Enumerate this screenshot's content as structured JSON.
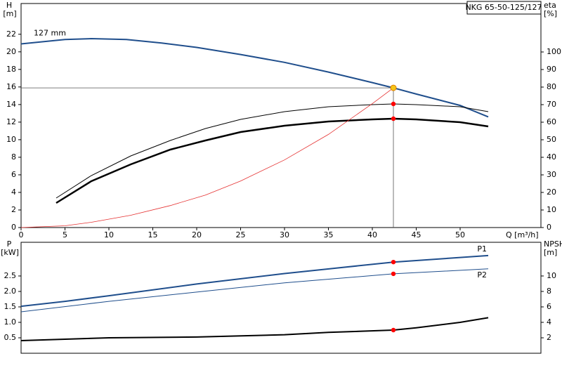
{
  "chart_data": [
    {
      "type": "line",
      "title": "NKG 65-50-125/127",
      "ylabel": "H",
      "ylabel_unit": "[m]",
      "y2label": "eta",
      "y2label_unit": "[%]",
      "xlabel": "Q [m³/h]",
      "xlim": [
        0,
        59.2
      ],
      "xticks": [
        0,
        5,
        10,
        15,
        20,
        25,
        30,
        35,
        40,
        45,
        50
      ],
      "ylim": [
        0,
        25.5
      ],
      "yticks": [
        0,
        2,
        4,
        6,
        8,
        10,
        12,
        14,
        16,
        18,
        20,
        22
      ],
      "y2lim": [
        0,
        127.6
      ],
      "y2ticks": [
        0,
        10,
        20,
        30,
        40,
        50,
        60,
        70,
        80,
        90,
        100
      ],
      "series": [
        {
          "name": "127 mm",
          "color": "#1f4e8c",
          "width": 2,
          "axis": "y",
          "x": [
            0,
            5,
            8,
            12,
            16,
            20,
            25,
            30,
            35,
            40,
            42.4,
            45,
            50,
            53.2
          ],
          "values": [
            20.9,
            21.4,
            21.5,
            21.4,
            21.0,
            20.5,
            19.7,
            18.8,
            17.7,
            16.5,
            15.9,
            15.2,
            13.9,
            12.6
          ]
        },
        {
          "color": "#000000",
          "width": 1,
          "axis": "y2",
          "x": [
            4,
            8,
            12.5,
            17,
            21,
            25,
            30,
            35,
            40,
            42.4,
            45,
            50,
            53.2
          ],
          "values": [
            16.8,
            29.6,
            40.8,
            49.6,
            56.4,
            61.6,
            66,
            68.8,
            70,
            70.4,
            70,
            68.8,
            66
          ]
        },
        {
          "color": "#000000",
          "width": 2.5,
          "axis": "y2",
          "x": [
            4,
            8,
            12.5,
            17,
            21,
            25,
            30,
            35,
            40,
            42.4,
            45,
            50,
            53.2
          ],
          "values": [
            14,
            26.4,
            36,
            44.4,
            49.6,
            54.4,
            58,
            60.4,
            61.6,
            62,
            61.6,
            60,
            57.6
          ]
        },
        {
          "color": "#e53030",
          "width": 0.8,
          "axis": "y",
          "x": [
            0,
            5,
            8,
            12.5,
            17,
            21,
            25,
            30,
            35,
            40,
            42.4
          ],
          "values": [
            0,
            0.2,
            0.6,
            1.4,
            2.5,
            3.7,
            5.3,
            7.7,
            10.6,
            14.1,
            15.9
          ]
        }
      ],
      "points": [
        {
          "x": 42.4,
          "y": 15.9,
          "axis": "y",
          "color": "#f5c518"
        },
        {
          "x": 42.4,
          "y": 70.4,
          "axis": "y2",
          "color": "#ff0000"
        },
        {
          "x": 42.4,
          "y": 62,
          "axis": "y2",
          "color": "#ff0000"
        }
      ]
    },
    {
      "type": "line",
      "ylabel": "P",
      "ylabel_unit": "[kW]",
      "y2label": "NPSH",
      "y2label_unit": "[m]",
      "xlim": [
        0,
        59.2
      ],
      "ylim": [
        0,
        3.59
      ],
      "yticks": [
        0.5,
        {
          "value": 1,
          "label": "1.0"
        },
        1.5,
        {
          "value": 2,
          "label": "2.0"
        },
        2.5
      ],
      "y2lim": [
        0,
        14.36
      ],
      "y2ticks": [
        2,
        4,
        6,
        8,
        10
      ],
      "series": [
        {
          "name": "P1",
          "color": "#1f4e8c",
          "width": 2,
          "axis": "y",
          "x": [
            0,
            5,
            10,
            20,
            30,
            42.4,
            53.2
          ],
          "values": [
            1.52,
            1.68,
            1.86,
            2.24,
            2.58,
            2.95,
            3.16
          ]
        },
        {
          "name": "P2",
          "color": "#1f4e8c",
          "width": 1,
          "axis": "y",
          "x": [
            0,
            10,
            20,
            30,
            42.4,
            53.2
          ],
          "values": [
            1.34,
            1.68,
            1.98,
            2.28,
            2.57,
            2.73
          ]
        },
        {
          "color": "#000000",
          "width": 2,
          "axis": "y2",
          "x": [
            0,
            10,
            20,
            30,
            35,
            42.4,
            45,
            50,
            53.2
          ],
          "values": [
            1.64,
            2.0,
            2.1,
            2.4,
            2.7,
            3.0,
            3.3,
            4.0,
            4.6
          ]
        }
      ],
      "points": [
        {
          "x": 42.4,
          "y": 2.95,
          "axis": "y",
          "color": "#ff0000"
        },
        {
          "x": 42.4,
          "y": 2.57,
          "axis": "y",
          "color": "#ff0000"
        },
        {
          "x": 42.4,
          "y": 3.0,
          "axis": "y2",
          "color": "#ff0000"
        }
      ]
    }
  ]
}
